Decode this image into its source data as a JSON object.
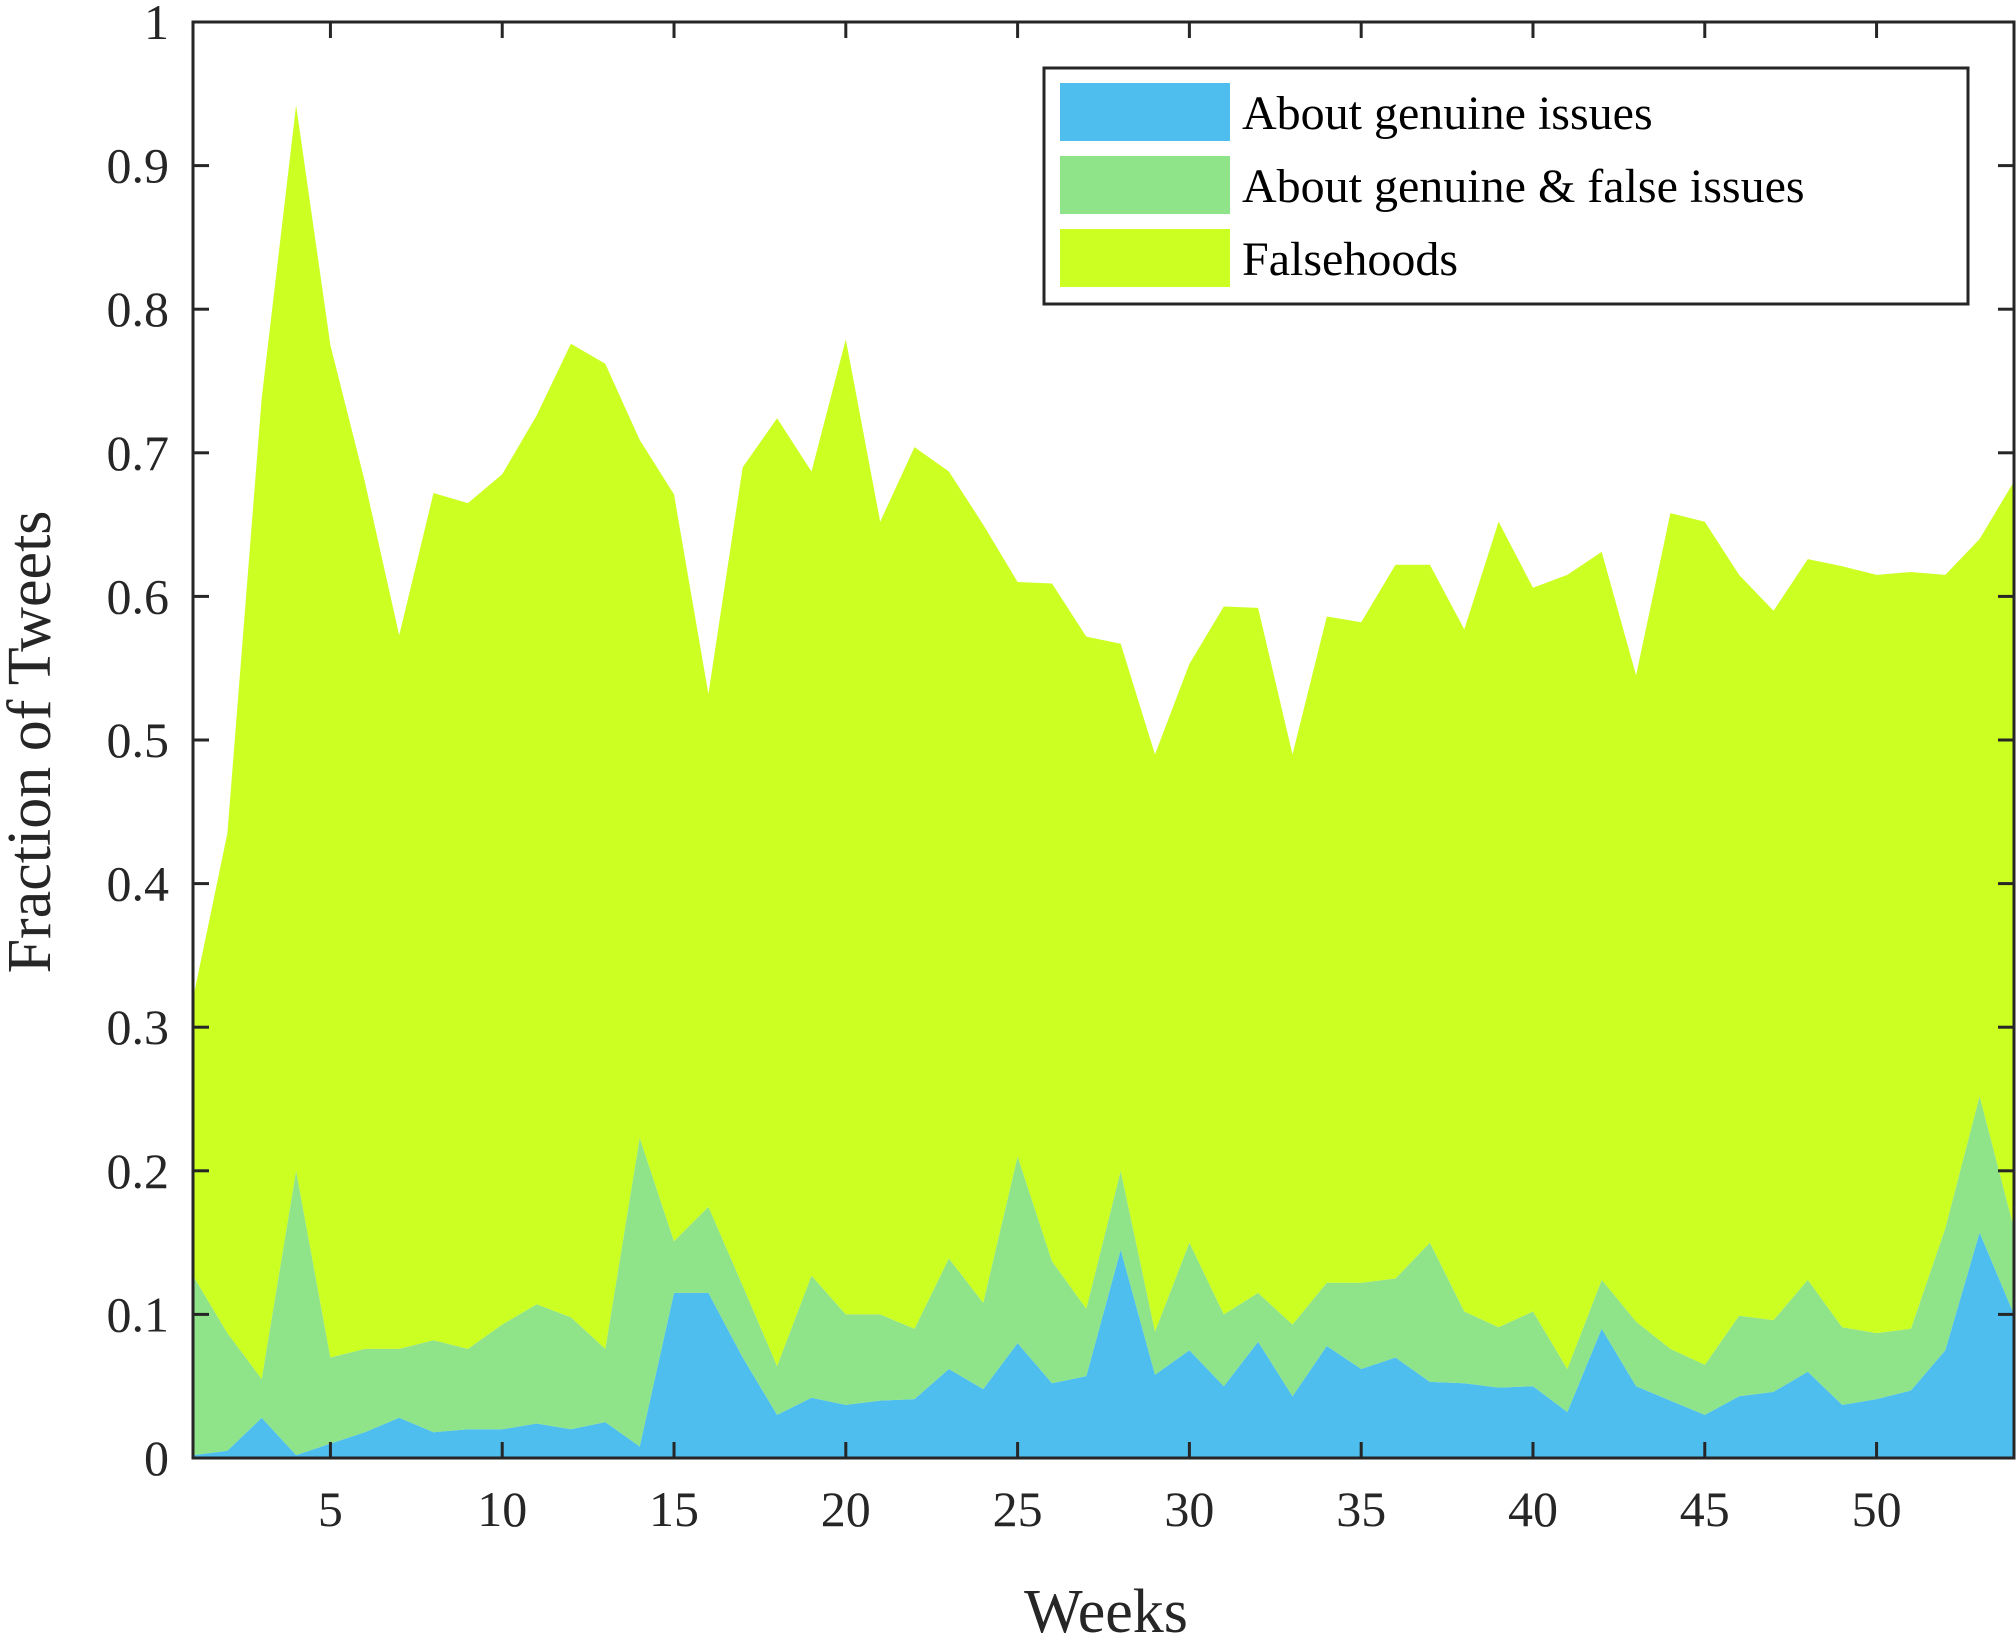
{
  "chart_data": {
    "type": "area",
    "stacking": "stacked",
    "xlabel": "Weeks",
    "ylabel": "Fraction of Tweets",
    "xlim": [
      1,
      54
    ],
    "ylim": [
      0,
      1
    ],
    "xticks": [
      5,
      10,
      15,
      20,
      25,
      30,
      35,
      40,
      45,
      50
    ],
    "xtick_labels": [
      "5",
      "10",
      "15",
      "20",
      "25",
      "30",
      "35",
      "40",
      "45",
      "50"
    ],
    "yticks": [
      0,
      0.1,
      0.2,
      0.3,
      0.4,
      0.5,
      0.6,
      0.7,
      0.8,
      0.9,
      1
    ],
    "ytick_labels": [
      "0",
      "0.1",
      "0.2",
      "0.3",
      "0.4",
      "0.5",
      "0.6",
      "0.7",
      "0.8",
      "0.9",
      "1"
    ],
    "grid": false,
    "legend_position": "top-right",
    "x": [
      1,
      2,
      3,
      4,
      5,
      6,
      7,
      8,
      9,
      10,
      11,
      12,
      13,
      14,
      15,
      16,
      17,
      18,
      19,
      20,
      21,
      22,
      23,
      24,
      25,
      26,
      27,
      28,
      29,
      30,
      31,
      32,
      33,
      34,
      35,
      36,
      37,
      38,
      39,
      40,
      41,
      42,
      43,
      44,
      45,
      46,
      47,
      48,
      49,
      50,
      51,
      52,
      53,
      54
    ],
    "series": [
      {
        "name": "About genuine issues",
        "color": "#4DBEEE",
        "values": [
          0.002,
          0.005,
          0.028,
          0.002,
          0.01,
          0.018,
          0.028,
          0.018,
          0.02,
          0.02,
          0.024,
          0.02,
          0.025,
          0.008,
          0.115,
          0.115,
          0.07,
          0.03,
          0.042,
          0.037,
          0.04,
          0.041,
          0.062,
          0.048,
          0.08,
          0.052,
          0.057,
          0.145,
          0.058,
          0.075,
          0.05,
          0.081,
          0.043,
          0.078,
          0.062,
          0.07,
          0.053,
          0.052,
          0.049,
          0.05,
          0.032,
          0.09,
          0.05,
          0.04,
          0.03,
          0.043,
          0.046,
          0.06,
          0.037,
          0.041,
          0.047,
          0.075,
          0.157,
          0.1
        ]
      },
      {
        "name": "About genuine & false issues",
        "color": "#8FE388",
        "values": [
          0.125,
          0.082,
          0.027,
          0.198,
          0.06,
          0.058,
          0.048,
          0.064,
          0.056,
          0.073,
          0.083,
          0.078,
          0.051,
          0.215,
          0.036,
          0.06,
          0.05,
          0.034,
          0.085,
          0.063,
          0.06,
          0.049,
          0.077,
          0.06,
          0.13,
          0.085,
          0.047,
          0.055,
          0.03,
          0.075,
          0.05,
          0.034,
          0.05,
          0.044,
          0.06,
          0.055,
          0.097,
          0.05,
          0.042,
          0.052,
          0.03,
          0.034,
          0.045,
          0.036,
          0.035,
          0.056,
          0.05,
          0.064,
          0.054,
          0.046,
          0.043,
          0.085,
          0.095,
          0.06
        ]
      },
      {
        "name": "Falsehoods",
        "color": "#CCFF22",
        "values": [
          0.193,
          0.348,
          0.683,
          0.742,
          0.705,
          0.604,
          0.497,
          0.59,
          0.589,
          0.592,
          0.619,
          0.678,
          0.686,
          0.486,
          0.52,
          0.357,
          0.57,
          0.66,
          0.56,
          0.679,
          0.552,
          0.614,
          0.548,
          0.542,
          0.4,
          0.472,
          0.468,
          0.367,
          0.402,
          0.403,
          0.493,
          0.477,
          0.397,
          0.464,
          0.46,
          0.497,
          0.472,
          0.475,
          0.561,
          0.504,
          0.553,
          0.507,
          0.45,
          0.582,
          0.587,
          0.516,
          0.494,
          0.502,
          0.53,
          0.528,
          0.527,
          0.455,
          0.388,
          0.52
        ]
      }
    ]
  }
}
